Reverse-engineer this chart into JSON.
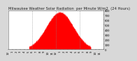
{
  "title": "Milwaukee Weather Solar Radiation  per Minute W/m2  (24 Hours)",
  "bg_color": "#d8d8d8",
  "plot_bg_color": "#ffffff",
  "fill_color": "#ff0000",
  "line_color": "#dd0000",
  "grid_color": "#888888",
  "ymax": 800,
  "ymin": 0,
  "num_points": 1440,
  "peak_hour": 13.0,
  "peak_value": 760,
  "solar_start": 5.2,
  "solar_end": 20.8,
  "sigma": 3.4,
  "vgrid_hours": [
    6,
    12,
    18
  ],
  "y_ticks": [
    0,
    100,
    200,
    300,
    400,
    500,
    600,
    700,
    800
  ],
  "x_tick_hours": [
    0,
    1,
    2,
    3,
    4,
    5,
    6,
    7,
    8,
    9,
    10,
    11,
    12,
    13,
    14,
    15,
    16,
    17,
    18,
    19,
    20,
    21,
    22,
    23
  ],
  "title_fontsize": 3.8,
  "tick_fontsize": 2.8
}
